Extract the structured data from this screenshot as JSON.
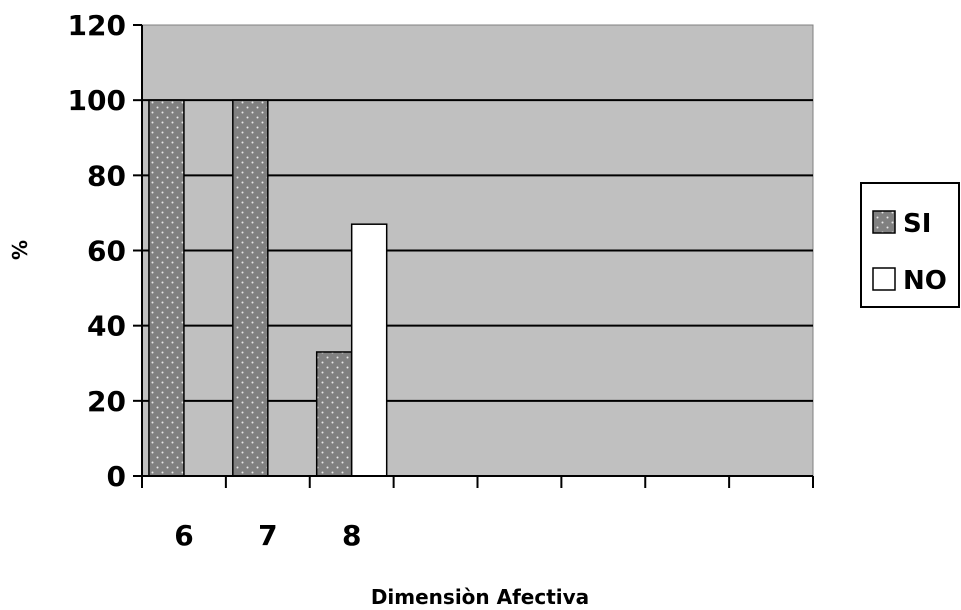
{
  "chart_data": {
    "type": "bar",
    "categories": [
      "6",
      "7",
      "8"
    ],
    "slot_count": 8,
    "series": [
      {
        "name": "SI",
        "values": [
          100,
          100,
          33
        ],
        "color": "#808080",
        "pattern": "dotted"
      },
      {
        "name": "NO",
        "values": [
          0,
          0,
          67
        ],
        "color": "#ffffff",
        "pattern": "solid"
      }
    ],
    "title": "",
    "xlabel": "Dimensiòn Afectiva",
    "ylabel": "%",
    "ylim": [
      0,
      120
    ],
    "yticks": [
      0,
      20,
      40,
      60,
      80,
      100,
      120
    ],
    "grid": true,
    "plot_background": "#c0c0c0",
    "legend_position": "right"
  }
}
